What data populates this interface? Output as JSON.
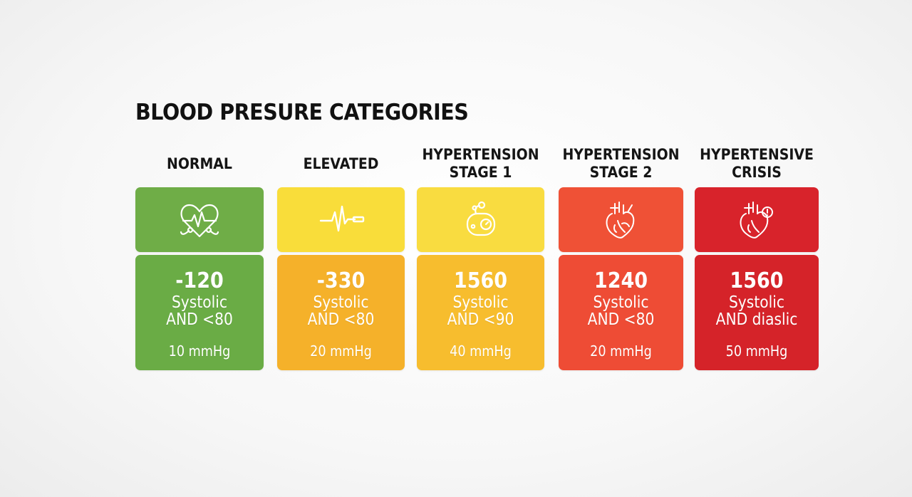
{
  "title": "BLOOD PRESURE CATEGORIES",
  "categories": [
    {
      "heading": "NORMAL",
      "icon": "heart-pulse-stethoscope-icon",
      "value": "-120",
      "line1": "Systolic",
      "line2": "AND <80",
      "unit": "10 mmHg",
      "icon_color": "#6fad47",
      "value_color": "#6aac45"
    },
    {
      "heading": "ELEVATED",
      "icon": "pulse-line-icon",
      "value": "-330",
      "line1": "Systolic",
      "line2": "AND <80",
      "unit": "20 mmHg",
      "icon_color": "#f9dd3a",
      "value_color": "#f5b12a"
    },
    {
      "heading": "HYPERTENSION\nSTAGE 1",
      "icon": "pressure-gauge-icon",
      "value": "1560",
      "line1": "Systolic",
      "line2": "AND <90",
      "unit": "40 mmHg",
      "icon_color": "#f9dc40",
      "value_color": "#f7bd2e"
    },
    {
      "heading": "HYPERTENSION\nSTAGE 2",
      "icon": "anatomical-heart-icon",
      "value": "1240",
      "line1": "Systolic",
      "line2": "AND <80",
      "unit": "20 mmHg",
      "icon_color": "#ef5136",
      "value_color": "#ee4c35"
    },
    {
      "heading": "HYPERTENSIVE\nCRISIS",
      "icon": "anatomical-heart-alert-icon",
      "value": "1560",
      "line1": "Systolic",
      "line2": "AND diaslic",
      "unit": "50 mmHg",
      "icon_color": "#d8232b",
      "value_color": "#d52329"
    }
  ]
}
